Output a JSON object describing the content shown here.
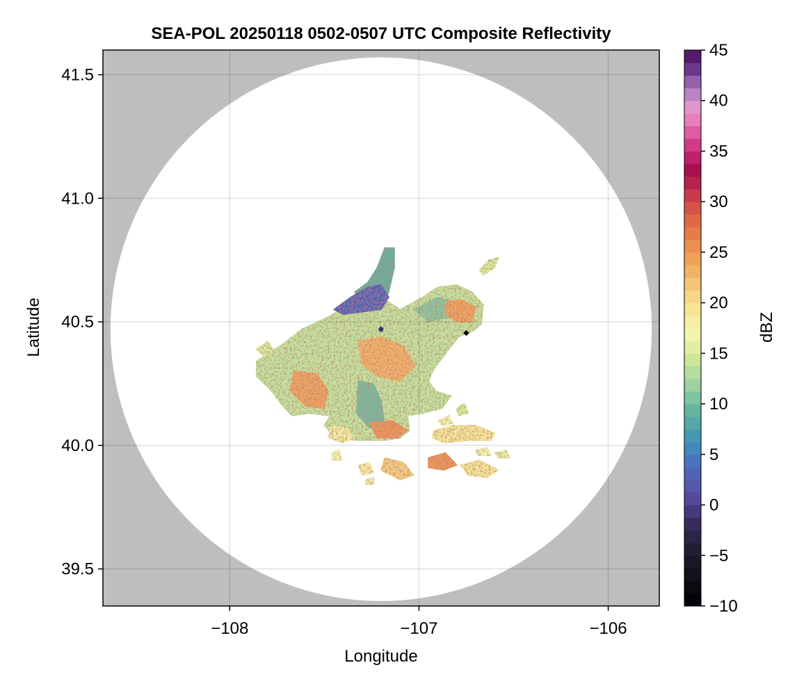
{
  "chart_data": {
    "type": "heatmap",
    "title": "SEA-POL 20250118 0502-0507 UTC Composite Reflectivity",
    "xlabel": "Longitude",
    "ylabel": "Latitude",
    "xlim": [
      -108.67,
      -105.73
    ],
    "ylim": [
      39.35,
      41.6
    ],
    "xticks": [
      -108,
      -107,
      -106
    ],
    "xtick_labels": [
      "−108",
      "−107",
      "−106"
    ],
    "yticks": [
      39.5,
      40.0,
      40.5,
      41.0,
      41.5
    ],
    "ytick_labels": [
      "39.5",
      "40.0",
      "40.5",
      "41.0",
      "41.5"
    ],
    "grid": true,
    "missing_color": "#bebebe",
    "coverage_circle": {
      "center_lon": -107.2,
      "center_lat": 40.47,
      "radius_lat_deg": 1.1
    },
    "radar_location": {
      "lon": -107.2,
      "lat": 40.47,
      "color": "#3b2f73"
    },
    "marker_point": {
      "lon": -106.75,
      "lat": 40.455,
      "color": "#000000",
      "shape": "diamond"
    },
    "colorbar": {
      "label": "dBZ",
      "range": [
        -10,
        45
      ],
      "ticks": [
        -10,
        -5,
        0,
        5,
        10,
        15,
        20,
        25,
        30,
        35,
        40,
        45
      ],
      "tick_labels": [
        "−10",
        "−5",
        "0",
        "5",
        "10",
        "15",
        "20",
        "25",
        "30",
        "35",
        "40",
        "45"
      ],
      "stops": [
        {
          "v": -10,
          "c": "#000004"
        },
        {
          "v": -5,
          "c": "#1c1a2b"
        },
        {
          "v": -2,
          "c": "#352b58"
        },
        {
          "v": 1,
          "c": "#5a4da3"
        },
        {
          "v": 4,
          "c": "#4a6fbb"
        },
        {
          "v": 6,
          "c": "#3f8fbb"
        },
        {
          "v": 9,
          "c": "#5cb2a0"
        },
        {
          "v": 12,
          "c": "#9fd49e"
        },
        {
          "v": 15,
          "c": "#d8ec9c"
        },
        {
          "v": 17,
          "c": "#f5f6b0"
        },
        {
          "v": 20,
          "c": "#f8e08e"
        },
        {
          "v": 23,
          "c": "#f2b466"
        },
        {
          "v": 26,
          "c": "#eb8a4c"
        },
        {
          "v": 29,
          "c": "#dc5a45"
        },
        {
          "v": 31,
          "c": "#c4344d"
        },
        {
          "v": 33,
          "c": "#a50e4b"
        },
        {
          "v": 35,
          "c": "#c82a78"
        },
        {
          "v": 37,
          "c": "#e25ea6"
        },
        {
          "v": 39,
          "c": "#e89bcf"
        },
        {
          "v": 41,
          "c": "#b07ec3"
        },
        {
          "v": 43,
          "c": "#6e3a8c"
        },
        {
          "v": 45,
          "c": "#4a0d5a"
        }
      ]
    },
    "echo_regions": [
      {
        "name": "main-echo",
        "dbz": 14,
        "points": [
          [
            -107.86,
            40.34
          ],
          [
            -107.72,
            40.41
          ],
          [
            -107.62,
            40.47
          ],
          [
            -107.48,
            40.52
          ],
          [
            -107.36,
            40.57
          ],
          [
            -107.28,
            40.62
          ],
          [
            -107.2,
            40.6
          ],
          [
            -107.1,
            40.55
          ],
          [
            -106.98,
            40.6
          ],
          [
            -106.9,
            40.64
          ],
          [
            -106.8,
            40.65
          ],
          [
            -106.72,
            40.62
          ],
          [
            -106.66,
            40.57
          ],
          [
            -106.67,
            40.49
          ],
          [
            -106.72,
            40.46
          ],
          [
            -106.79,
            40.44
          ],
          [
            -106.86,
            40.37
          ],
          [
            -106.92,
            40.31
          ],
          [
            -106.95,
            40.26
          ],
          [
            -106.91,
            40.22
          ],
          [
            -106.83,
            40.2
          ],
          [
            -106.88,
            40.15
          ],
          [
            -106.98,
            40.13
          ],
          [
            -107.06,
            40.12
          ],
          [
            -107.05,
            40.06
          ],
          [
            -107.1,
            40.03
          ],
          [
            -107.18,
            40.02
          ],
          [
            -107.32,
            40.02
          ],
          [
            -107.44,
            40.03
          ],
          [
            -107.5,
            40.08
          ],
          [
            -107.47,
            40.12
          ],
          [
            -107.58,
            40.13
          ],
          [
            -107.67,
            40.12
          ],
          [
            -107.72,
            40.16
          ],
          [
            -107.79,
            40.23
          ],
          [
            -107.86,
            40.28
          ]
        ]
      },
      {
        "name": "north-spike",
        "dbz": 9,
        "points": [
          [
            -107.34,
            40.62
          ],
          [
            -107.27,
            40.66
          ],
          [
            -107.22,
            40.72
          ],
          [
            -107.18,
            40.8
          ],
          [
            -107.13,
            40.8
          ],
          [
            -107.13,
            40.72
          ],
          [
            -107.16,
            40.62
          ],
          [
            -107.19,
            40.57
          ],
          [
            -107.26,
            40.56
          ]
        ]
      },
      {
        "name": "blue-north",
        "dbz": 3,
        "points": [
          [
            -107.45,
            40.55
          ],
          [
            -107.36,
            40.6
          ],
          [
            -107.27,
            40.64
          ],
          [
            -107.2,
            40.65
          ],
          [
            -107.16,
            40.6
          ],
          [
            -107.2,
            40.55
          ],
          [
            -107.3,
            40.54
          ],
          [
            -107.4,
            40.53
          ]
        ]
      },
      {
        "name": "green-center",
        "dbz": 10,
        "points": [
          [
            -107.32,
            40.26
          ],
          [
            -107.24,
            40.25
          ],
          [
            -107.2,
            40.18
          ],
          [
            -107.18,
            40.08
          ],
          [
            -107.26,
            40.07
          ],
          [
            -107.33,
            40.13
          ]
        ]
      },
      {
        "name": "ne-green",
        "dbz": 11,
        "points": [
          [
            -107.02,
            40.55
          ],
          [
            -106.9,
            40.6
          ],
          [
            -106.8,
            40.58
          ],
          [
            -106.84,
            40.52
          ],
          [
            -106.95,
            40.5
          ]
        ]
      },
      {
        "name": "orange-ne",
        "dbz": 24,
        "points": [
          [
            -106.86,
            40.58
          ],
          [
            -106.78,
            40.59
          ],
          [
            -106.7,
            40.56
          ],
          [
            -106.72,
            40.5
          ],
          [
            -106.8,
            40.5
          ],
          [
            -106.86,
            40.53
          ]
        ]
      },
      {
        "name": "orange-center",
        "dbz": 23,
        "points": [
          [
            -107.32,
            40.42
          ],
          [
            -107.2,
            40.44
          ],
          [
            -107.08,
            40.4
          ],
          [
            -107.02,
            40.32
          ],
          [
            -107.1,
            40.26
          ],
          [
            -107.22,
            40.28
          ],
          [
            -107.3,
            40.33
          ]
        ]
      },
      {
        "name": "orange-sw",
        "dbz": 24,
        "points": [
          [
            -107.66,
            40.3
          ],
          [
            -107.54,
            40.29
          ],
          [
            -107.48,
            40.22
          ],
          [
            -107.5,
            40.15
          ],
          [
            -107.6,
            40.16
          ],
          [
            -107.68,
            40.22
          ]
        ]
      },
      {
        "name": "orange-south",
        "dbz": 25,
        "points": [
          [
            -107.26,
            40.09
          ],
          [
            -107.14,
            40.1
          ],
          [
            -107.06,
            40.06
          ],
          [
            -107.12,
            40.03
          ],
          [
            -107.22,
            40.03
          ]
        ]
      },
      {
        "name": "band-se",
        "dbz": 19,
        "points": [
          [
            -106.92,
            40.06
          ],
          [
            -106.82,
            40.08
          ],
          [
            -106.7,
            40.08
          ],
          [
            -106.6,
            40.05
          ],
          [
            -106.62,
            40.02
          ],
          [
            -106.74,
            40.02
          ],
          [
            -106.86,
            40.01
          ],
          [
            -106.93,
            40.03
          ]
        ]
      },
      {
        "name": "band-south",
        "dbz": 18,
        "points": [
          [
            -107.46,
            40.08
          ],
          [
            -107.38,
            40.07
          ],
          [
            -107.34,
            40.03
          ],
          [
            -107.4,
            40.01
          ],
          [
            -107.48,
            40.03
          ]
        ]
      },
      {
        "name": "east-cell",
        "dbz": 15,
        "points": [
          [
            -106.66,
            40.69
          ],
          [
            -106.6,
            40.72
          ],
          [
            -106.58,
            40.76
          ],
          [
            -106.63,
            40.75
          ],
          [
            -106.68,
            40.71
          ]
        ]
      },
      {
        "name": "west-finger",
        "dbz": 15,
        "points": [
          [
            -107.86,
            40.39
          ],
          [
            -107.8,
            40.42
          ],
          [
            -107.76,
            40.38
          ],
          [
            -107.82,
            40.36
          ]
        ]
      },
      {
        "name": "cell-1",
        "dbz": 21,
        "points": [
          [
            -107.18,
            39.95
          ],
          [
            -107.08,
            39.93
          ],
          [
            -107.03,
            39.88
          ],
          [
            -107.1,
            39.86
          ],
          [
            -107.2,
            39.9
          ]
        ]
      },
      {
        "name": "cell-2",
        "dbz": 25,
        "points": [
          [
            -106.95,
            39.95
          ],
          [
            -106.86,
            39.97
          ],
          [
            -106.8,
            39.92
          ],
          [
            -106.87,
            39.9
          ],
          [
            -106.95,
            39.91
          ]
        ]
      },
      {
        "name": "cell-3",
        "dbz": 19,
        "points": [
          [
            -106.78,
            39.92
          ],
          [
            -106.68,
            39.94
          ],
          [
            -106.58,
            39.9
          ],
          [
            -106.64,
            39.87
          ],
          [
            -106.74,
            39.88
          ]
        ]
      },
      {
        "name": "cell-4",
        "dbz": 18,
        "points": [
          [
            -107.32,
            39.92
          ],
          [
            -107.26,
            39.93
          ],
          [
            -107.24,
            39.89
          ],
          [
            -107.3,
            39.88
          ]
        ]
      },
      {
        "name": "cell-5",
        "dbz": 17,
        "points": [
          [
            -106.7,
            39.98
          ],
          [
            -106.64,
            39.99
          ],
          [
            -106.62,
            39.96
          ],
          [
            -106.69,
            39.96
          ]
        ]
      },
      {
        "name": "cell-6",
        "dbz": 17,
        "points": [
          [
            -107.46,
            39.97
          ],
          [
            -107.42,
            39.98
          ],
          [
            -107.41,
            39.94
          ],
          [
            -107.46,
            39.94
          ]
        ]
      },
      {
        "name": "cell-7",
        "dbz": 16,
        "points": [
          [
            -106.6,
            39.97
          ],
          [
            -106.54,
            39.98
          ],
          [
            -106.52,
            39.95
          ],
          [
            -106.58,
            39.95
          ]
        ]
      },
      {
        "name": "cell-8",
        "dbz": 17,
        "points": [
          [
            -106.9,
            40.1
          ],
          [
            -106.84,
            40.12
          ],
          [
            -106.82,
            40.09
          ],
          [
            -106.88,
            40.08
          ]
        ]
      },
      {
        "name": "cell-9",
        "dbz": 15,
        "points": [
          [
            -106.8,
            40.15
          ],
          [
            -106.76,
            40.17
          ],
          [
            -106.74,
            40.13
          ],
          [
            -106.79,
            40.12
          ]
        ]
      },
      {
        "name": "cell-10",
        "dbz": 18,
        "points": [
          [
            -107.28,
            39.86
          ],
          [
            -107.24,
            39.87
          ],
          [
            -107.24,
            39.84
          ],
          [
            -107.28,
            39.84
          ]
        ]
      }
    ]
  }
}
